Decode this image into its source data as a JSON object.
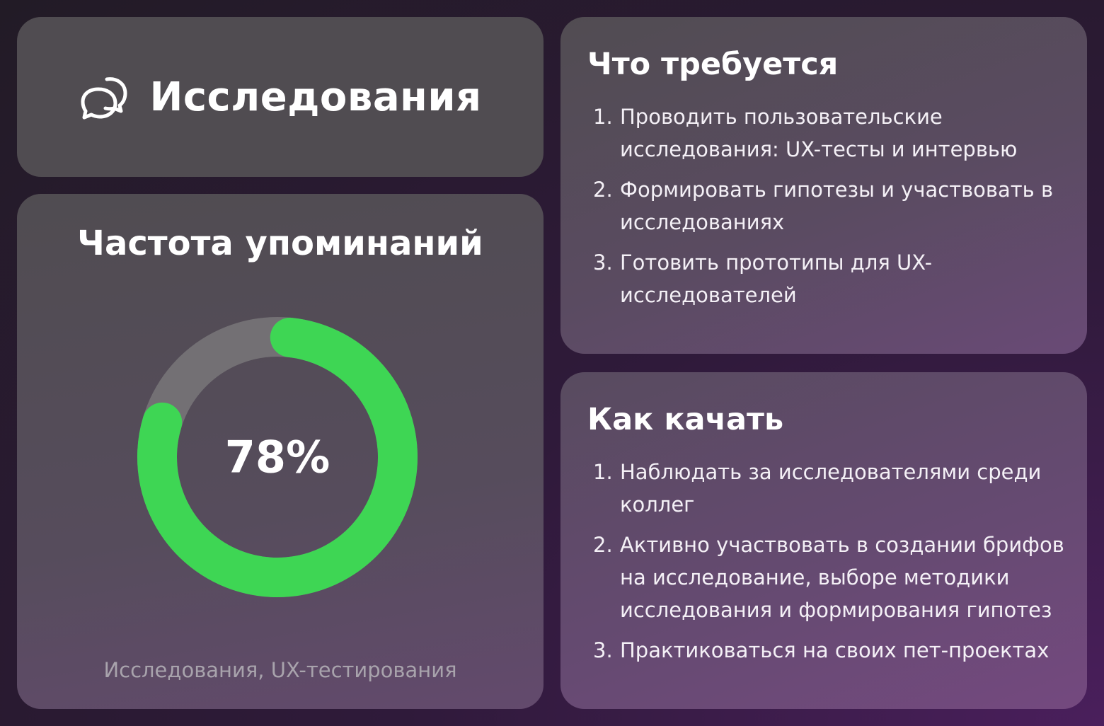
{
  "header": {
    "title": "Исследования",
    "icon": "chat-bubbles-icon"
  },
  "chart_data": {
    "type": "pie",
    "title": "Частота упоминаний",
    "values": [
      78,
      22
    ],
    "center_label": "78%",
    "caption": "Исследования, UX-тестирования",
    "colors": {
      "filled": "#3ed654",
      "remaining": "#737074"
    }
  },
  "requirements": {
    "title": "Что требуется",
    "items": [
      {
        "num": "1.",
        "text": "Проводить пользовательские исследования: UX-тесты и интервью"
      },
      {
        "num": "2.",
        "text": "Формировать гипотезы и участвовать в исследованиях"
      },
      {
        "num": "3.",
        "text": "Готовить прототипы для UX-исследователей"
      }
    ]
  },
  "growth": {
    "title": "Как качать",
    "items": [
      {
        "num": "1.",
        "text": "Наблюдать за исследователями среди коллег"
      },
      {
        "num": "2.",
        "text": "Активно участвовать в создании брифов на исследование, выборе методики исследования и формирования гипотез"
      },
      {
        "num": "3.",
        "text": "Практиковаться на своих пет-проектах"
      }
    ]
  }
}
